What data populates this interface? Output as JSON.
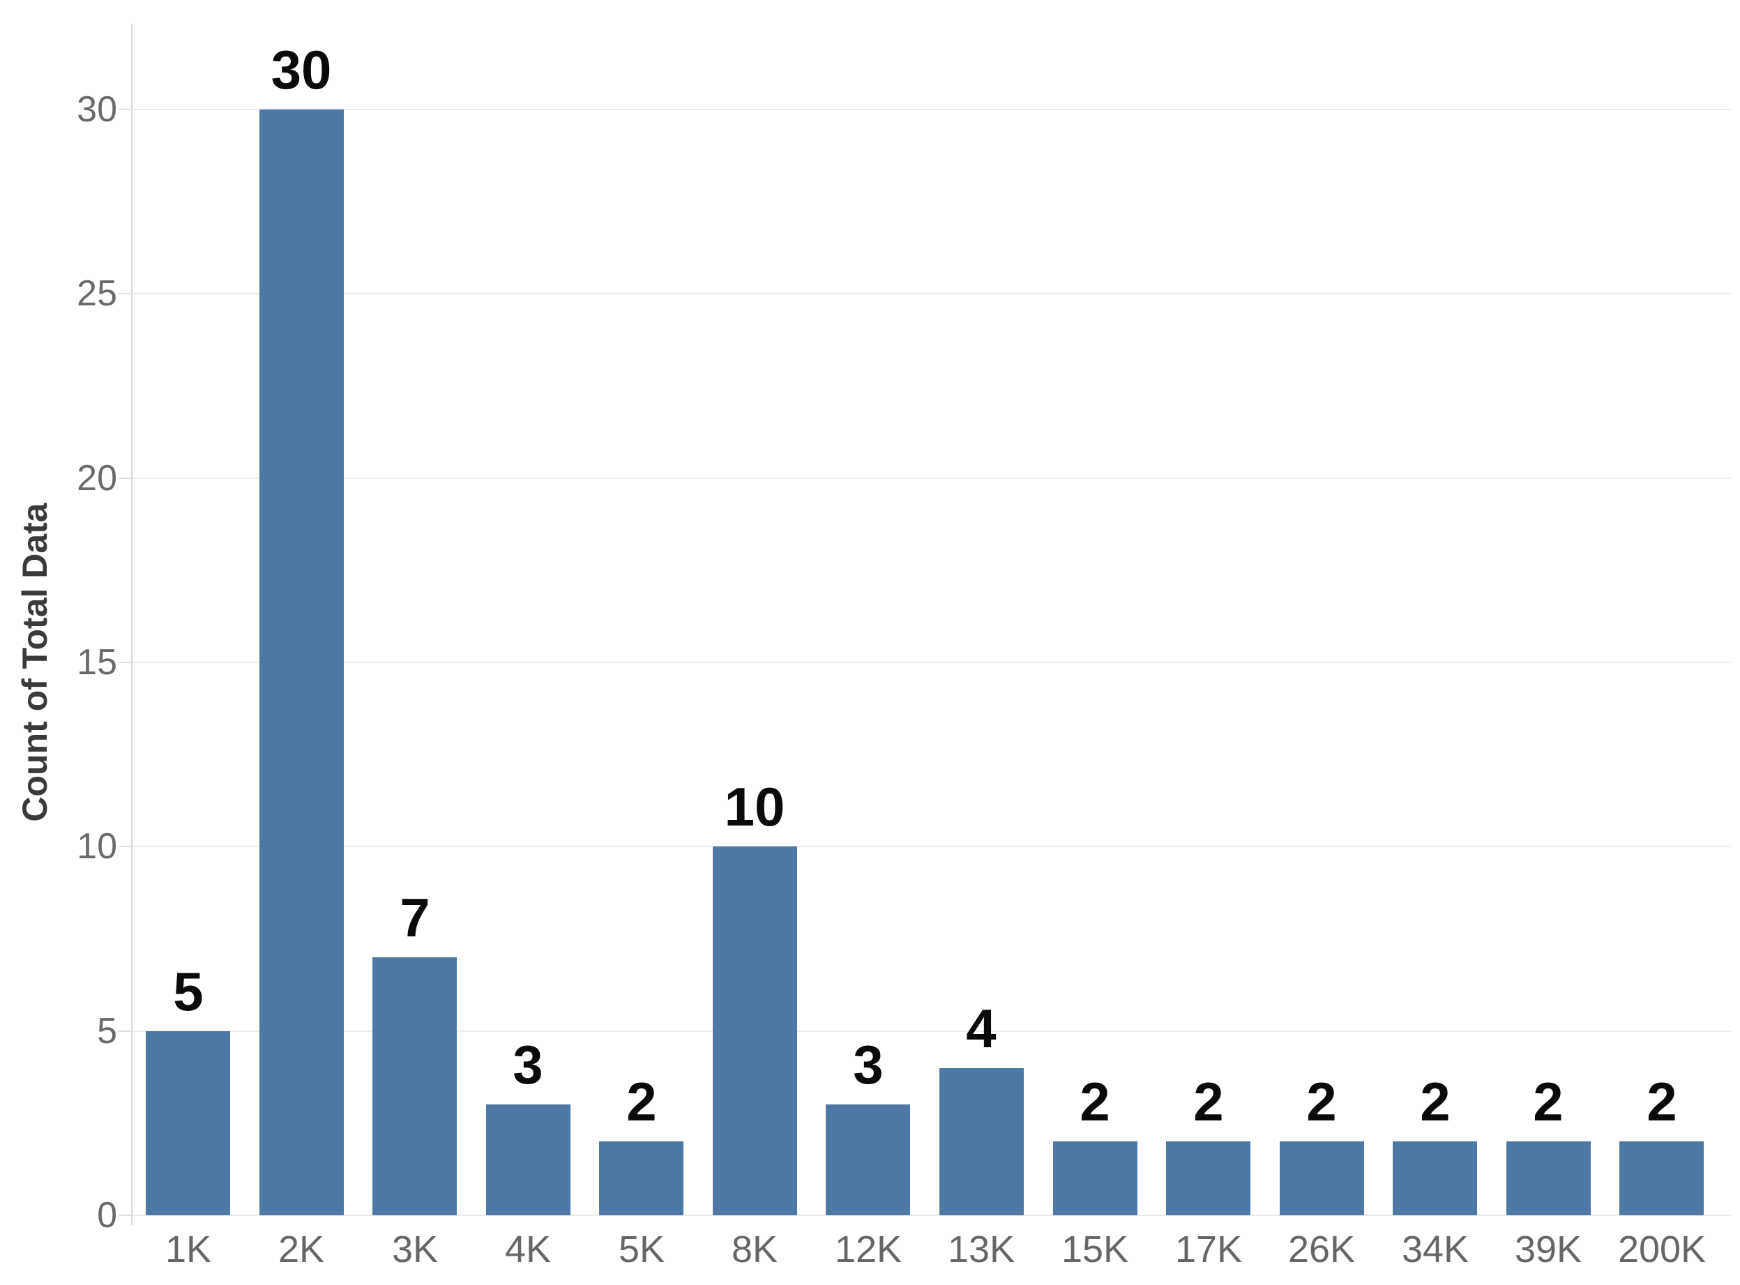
{
  "chart_data": {
    "type": "bar",
    "title": "",
    "xlabel": "",
    "ylabel": "Count of Total Data",
    "categories": [
      "1K",
      "2K",
      "3K",
      "4K",
      "5K",
      "8K",
      "12K",
      "13K",
      "15K",
      "17K",
      "26K",
      "34K",
      "39K",
      "200K"
    ],
    "values": [
      5,
      30,
      7,
      3,
      2,
      10,
      3,
      4,
      2,
      2,
      2,
      2,
      2,
      2
    ],
    "bar_labels": [
      "5",
      "30",
      "7",
      "3",
      "2",
      "10",
      "3",
      "4",
      "2",
      "2",
      "2",
      "2",
      "2",
      "2"
    ],
    "yticks": [
      0,
      5,
      10,
      15,
      20,
      25,
      30
    ],
    "ylim": [
      0,
      32.3
    ],
    "grid": "horizontal",
    "legend": "none",
    "colors": {
      "bar": "#4e79a7",
      "grid": "#ebebeb",
      "tick_mark": "#dedede",
      "axis_line": "#d8d8d8",
      "tick_label": "#6a6a6a",
      "x_tick_label": "#666666",
      "axis_title": "#3a3a3a",
      "data_label": "#0a0a0a",
      "background": "#ffffff"
    }
  }
}
